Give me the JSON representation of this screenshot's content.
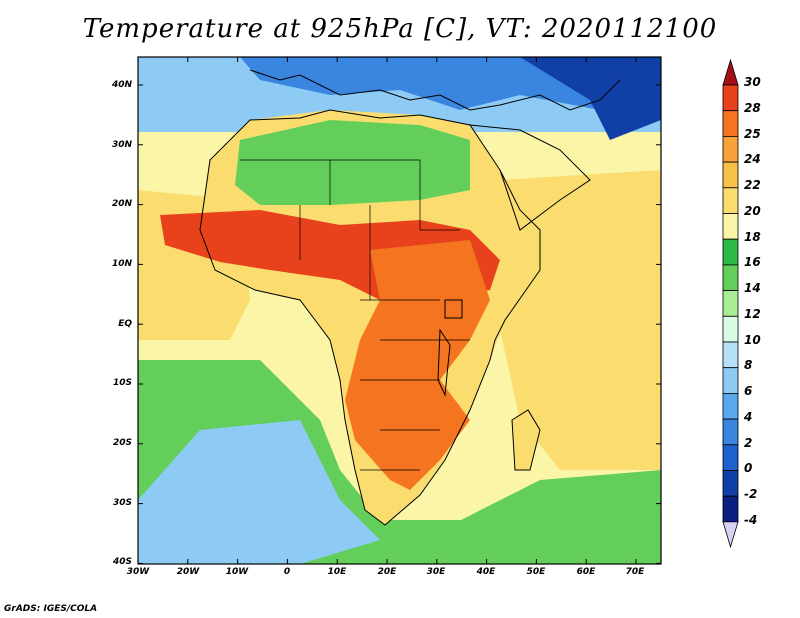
{
  "title": "Temperature at 925hPa [C], VT: 2020112100",
  "credit": "GrADS: IGES/COLA",
  "lat_labels": [
    "40N",
    "30N",
    "20N",
    "10N",
    "EQ",
    "10S",
    "20S",
    "30S",
    "40S"
  ],
  "lon_labels": [
    "30W",
    "20W",
    "10W",
    "0",
    "10E",
    "20E",
    "30E",
    "40E",
    "50E",
    "60E",
    "70E"
  ],
  "colorbar": {
    "labels": [
      "30",
      "28",
      "25",
      "24",
      "22",
      "20",
      "18",
      "16",
      "14",
      "12",
      "10",
      "8",
      "6",
      "4",
      "2",
      "0",
      "-2",
      "-4"
    ],
    "colors": [
      "#a50f15",
      "#e8421c",
      "#f5741f",
      "#f7a23a",
      "#f7c04a",
      "#fadd6e",
      "#fbf5a8",
      "#2fb84a",
      "#63cf5a",
      "#a8ec95",
      "#dcfbe7",
      "#b5e0f8",
      "#8ecbf4",
      "#5aa8ec",
      "#3a85e0",
      "#1f5fd0",
      "#103fa6",
      "#0b2080",
      "#d8d2f5"
    ]
  },
  "field_colors": {
    "ocean_warm": "#fadd6e",
    "ocean_mild": "#fbf5a8",
    "ocean_cool": "#63cf5a",
    "sahara": "#63cf5a",
    "savanna_hot": "#e8421c",
    "central_hot": "#f5741f",
    "south_ocean": "#8ecbf4",
    "mediterranean": "#8ecbf4",
    "europe_cold": "#3a85e0",
    "far_north_cold": "#103fa6"
  }
}
